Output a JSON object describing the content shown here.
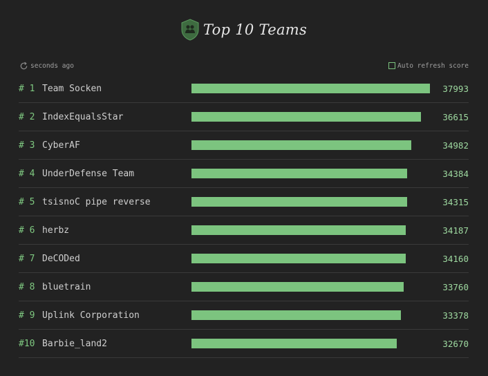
{
  "header": {
    "title": "Top 10 Teams",
    "icon": "shield-team-icon"
  },
  "status": {
    "last_update": "seconds ago",
    "auto_refresh_label": "Auto refresh score",
    "auto_refresh_checked": false
  },
  "colors": {
    "background": "#222222",
    "accent": "#7cc47f",
    "divider": "#3a3a3a"
  },
  "scale_max": 37993,
  "teams": [
    {
      "rank": "# 1",
      "name": "Team Socken",
      "score": "37993",
      "value": 37993
    },
    {
      "rank": "# 2",
      "name": "IndexEqualsStar",
      "score": "36615",
      "value": 36615
    },
    {
      "rank": "# 3",
      "name": "CyberAF",
      "score": "34982",
      "value": 34982
    },
    {
      "rank": "# 4",
      "name": "UnderDefense Team",
      "score": "34384",
      "value": 34384
    },
    {
      "rank": "# 5",
      "name": "tsisnoC pipe reverse",
      "score": "34315",
      "value": 34315
    },
    {
      "rank": "# 6",
      "name": "herbz",
      "score": "34187",
      "value": 34187
    },
    {
      "rank": "# 7",
      "name": "DeCODed",
      "score": "34160",
      "value": 34160
    },
    {
      "rank": "# 8",
      "name": "bluetrain",
      "score": "33760",
      "value": 33760
    },
    {
      "rank": "# 9",
      "name": "Uplink Corporation",
      "score": "33378",
      "value": 33378
    },
    {
      "rank": "#10",
      "name": "Barbie_land2",
      "score": "32670",
      "value": 32670
    }
  ]
}
